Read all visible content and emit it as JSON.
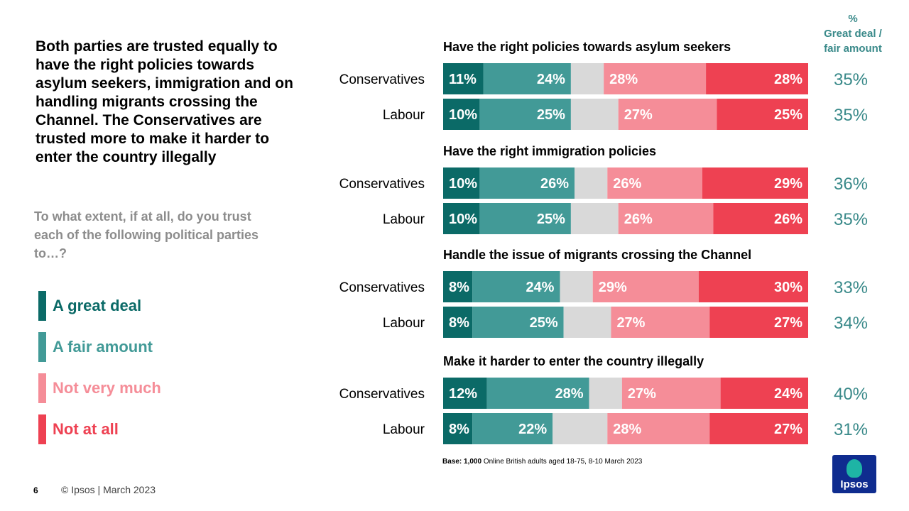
{
  "headline": "Both parties are trusted equally to have the right policies towards asylum seekers, immigration and on handling migrants crossing the Channel. The Conservatives are trusted more to make it harder to enter the country illegally",
  "question": "To what extent, if at all, do you trust each of the following political parties to…?",
  "metric_header": {
    "line1": "%",
    "line2": "Great deal /",
    "line3": "fair amount"
  },
  "legend": [
    {
      "label": "A great deal",
      "color": "#0b6a67"
    },
    {
      "label": "A fair amount",
      "color": "#429a97"
    },
    {
      "label": "Not very much",
      "color": "#f58d98"
    },
    {
      "label": "Not at all",
      "color": "#ee4152"
    }
  ],
  "footer": {
    "page_number": "6",
    "copyright": "© Ipsos | March 2023",
    "base_label": "Base:",
    "base_n": "1,000",
    "base_rest": "Online British adults aged 18-75, 8-10 March 2023"
  },
  "logo_text": "Ipsos",
  "chart_data": {
    "type": "bar",
    "orientation": "horizontal",
    "stacked": true,
    "segment_order": [
      "A great deal",
      "A fair amount",
      "Don't know",
      "Not very much",
      "Not at all"
    ],
    "colors": {
      "great": "#0b6a67",
      "fair": "#429a97",
      "dk": "#d9d9d9",
      "notvery": "#f58d98",
      "notatall": "#ee4152"
    },
    "groups": [
      {
        "title": "Have the right policies towards asylum seekers",
        "rows": [
          {
            "party": "Conservatives",
            "great": 11,
            "fair": 24,
            "notvery": 28,
            "notatall": 28,
            "net": "35%"
          },
          {
            "party": "Labour",
            "great": 10,
            "fair": 25,
            "notvery": 27,
            "notatall": 25,
            "net": "35%"
          }
        ]
      },
      {
        "title": "Have the right immigration policies",
        "rows": [
          {
            "party": "Conservatives",
            "great": 10,
            "fair": 26,
            "notvery": 26,
            "notatall": 29,
            "net": "36%"
          },
          {
            "party": "Labour",
            "great": 10,
            "fair": 25,
            "notvery": 26,
            "notatall": 26,
            "net": "35%"
          }
        ]
      },
      {
        "title": "Handle the issue of migrants crossing the Channel",
        "rows": [
          {
            "party": "Conservatives",
            "great": 8,
            "fair": 24,
            "notvery": 29,
            "notatall": 30,
            "net": "33%"
          },
          {
            "party": "Labour",
            "great": 8,
            "fair": 25,
            "notvery": 27,
            "notatall": 27,
            "net": "34%"
          }
        ]
      },
      {
        "title": "Make it harder to enter the country illegally",
        "rows": [
          {
            "party": "Conservatives",
            "great": 12,
            "fair": 28,
            "notvery": 27,
            "notatall": 24,
            "net": "40%"
          },
          {
            "party": "Labour",
            "great": 8,
            "fair": 22,
            "notvery": 28,
            "notatall": 27,
            "net": "31%"
          }
        ]
      }
    ]
  }
}
